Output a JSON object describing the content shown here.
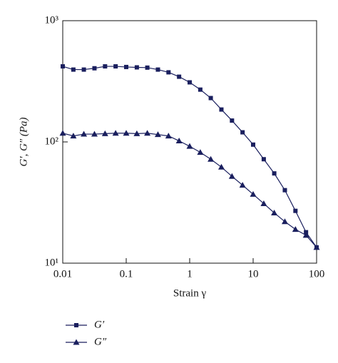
{
  "chart_data": {
    "type": "line",
    "x_label": "Strain γ",
    "y_label": "G′, G″ (Pa)",
    "x": [
      0.01,
      0.0147,
      0.0215,
      0.0316,
      0.0464,
      0.0681,
      0.1,
      0.147,
      0.215,
      0.316,
      0.464,
      0.681,
      1,
      1.47,
      2.15,
      3.16,
      4.64,
      6.81,
      10,
      14.7,
      21.5,
      31.6,
      46.4,
      68.1,
      100
    ],
    "series": [
      {
        "name": "G′",
        "color": "#1a1f5e",
        "marker": "square",
        "values": [
          420,
          395,
          395,
          405,
          420,
          420,
          415,
          412,
          410,
          395,
          375,
          345,
          310,
          270,
          230,
          185,
          150,
          120,
          95,
          72,
          55,
          40,
          27,
          18,
          13.5
        ]
      },
      {
        "name": "G″",
        "color": "#1a1f5e",
        "marker": "triangle",
        "values": [
          118,
          112,
          116,
          116,
          117,
          118,
          118,
          117,
          118,
          115,
          112,
          102,
          92,
          82,
          72,
          62,
          52,
          44,
          37,
          31,
          26,
          22,
          19,
          17,
          13.5
        ]
      }
    ],
    "log_x": true,
    "log_y": true,
    "xlim": [
      0.01,
      100
    ],
    "xticks": [
      0.01,
      0.1,
      1,
      10,
      100
    ],
    "ylim": [
      10,
      1000
    ],
    "yticks": [
      {
        "value": 10,
        "label": "10¹"
      },
      {
        "value": 100,
        "label": "10²"
      },
      {
        "value": 1000,
        "label": "10³"
      }
    ]
  }
}
